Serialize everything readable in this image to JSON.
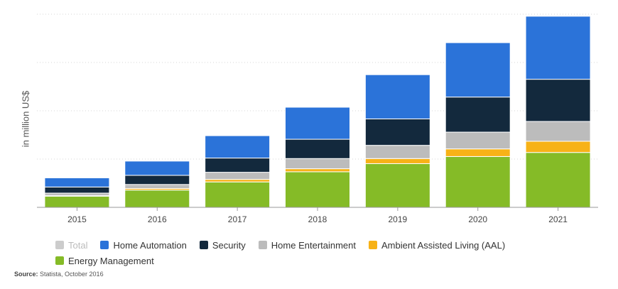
{
  "chart_data": {
    "type": "bar",
    "stacked": true,
    "ylabel": "in million US$",
    "categories": [
      "2015",
      "2016",
      "2017",
      "2018",
      "2019",
      "2020",
      "2021"
    ],
    "ylim": [
      0,
      380
    ],
    "grid": true,
    "legend_position": "bottom",
    "series": [
      {
        "name": "Energy Management",
        "color": "#85bb27",
        "values": [
          22,
          34,
          50,
          70,
          86,
          100,
          108
        ]
      },
      {
        "name": "Ambient Assisted Living (AAL)",
        "color": "#f7b217",
        "values": [
          1,
          3,
          5,
          6,
          10,
          15,
          22
        ]
      },
      {
        "name": "Home Entertainment",
        "color": "#bcbcbc",
        "values": [
          5,
          8,
          14,
          20,
          26,
          33,
          39
        ]
      },
      {
        "name": "Security",
        "color": "#13293d",
        "values": [
          12,
          18,
          28,
          38,
          52,
          69,
          83
        ]
      },
      {
        "name": "Home Automation",
        "color": "#2b73d9",
        "values": [
          18,
          28,
          44,
          63,
          87,
          107,
          124
        ]
      }
    ],
    "legend": [
      {
        "name": "Total",
        "color": "#cccccc",
        "muted": true
      },
      {
        "name": "Home Automation",
        "color": "#2b73d9"
      },
      {
        "name": "Security",
        "color": "#13293d"
      },
      {
        "name": "Home Entertainment",
        "color": "#bcbcbc"
      },
      {
        "name": "Ambient Assisted Living (AAL)",
        "color": "#f7b217"
      },
      {
        "name": "Energy Management",
        "color": "#85bb27"
      }
    ]
  },
  "source": {
    "label": "Source:",
    "text": " Statista, October 2016"
  }
}
